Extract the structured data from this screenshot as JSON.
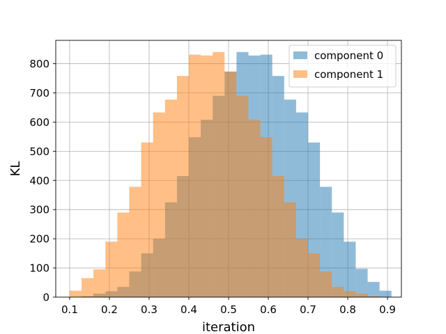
{
  "chart_data": {
    "type": "bar",
    "subtype": "overlapping-histogram",
    "xlabel": "iteration",
    "ylabel": "KL",
    "xlim": [
      0.065,
      0.935
    ],
    "ylim": [
      0,
      880
    ],
    "grid": true,
    "legend_position": "top-right",
    "xticks": [
      "0.1",
      "0.2",
      "0.3",
      "0.4",
      "0.5",
      "0.6",
      "0.7",
      "0.8",
      "0.9"
    ],
    "yticks": [
      "0",
      "100",
      "200",
      "300",
      "400",
      "500",
      "600",
      "700",
      "800"
    ],
    "bin_edges": [
      0.1,
      0.13,
      0.16,
      0.19,
      0.22,
      0.25,
      0.28,
      0.31,
      0.34,
      0.37,
      0.4,
      0.43,
      0.46,
      0.49,
      0.52,
      0.55,
      0.58,
      0.61,
      0.64,
      0.67,
      0.7,
      0.73,
      0.76,
      0.79,
      0.82,
      0.85,
      0.88,
      0.91
    ],
    "series": [
      {
        "name": "component 0",
        "color": "#1f77b4",
        "opacity": 0.5,
        "values": [
          0,
          3,
          12,
          20,
          35,
          88,
          150,
          200,
          325,
          415,
          548,
          608,
          690,
          773,
          840,
          828,
          831,
          758,
          677,
          633,
          530,
          378,
          290,
          190,
          97,
          52,
          22
        ]
      },
      {
        "name": "component 1",
        "color": "#ff7f0e",
        "opacity": 0.5,
        "values": [
          22,
          65,
          95,
          190,
          290,
          378,
          530,
          633,
          677,
          758,
          831,
          828,
          840,
          773,
          690,
          608,
          548,
          415,
          325,
          200,
          150,
          88,
          35,
          20,
          12,
          3,
          0
        ]
      }
    ]
  }
}
